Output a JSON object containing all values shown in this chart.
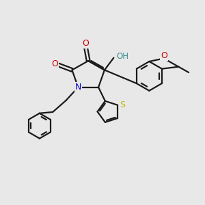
{
  "bg_color": "#e8e8e8",
  "bond_color": "#1a1a1a",
  "bond_width": 1.6,
  "atom_colors": {
    "O": "#cc0000",
    "N": "#0000cc",
    "S": "#bbbb00",
    "OH_color": "#3a8a8a",
    "C": "#1a1a1a"
  },
  "figsize": [
    3.0,
    3.0
  ],
  "dpi": 100,
  "xlim": [
    0.0,
    10.0
  ],
  "ylim": [
    1.0,
    9.5
  ]
}
